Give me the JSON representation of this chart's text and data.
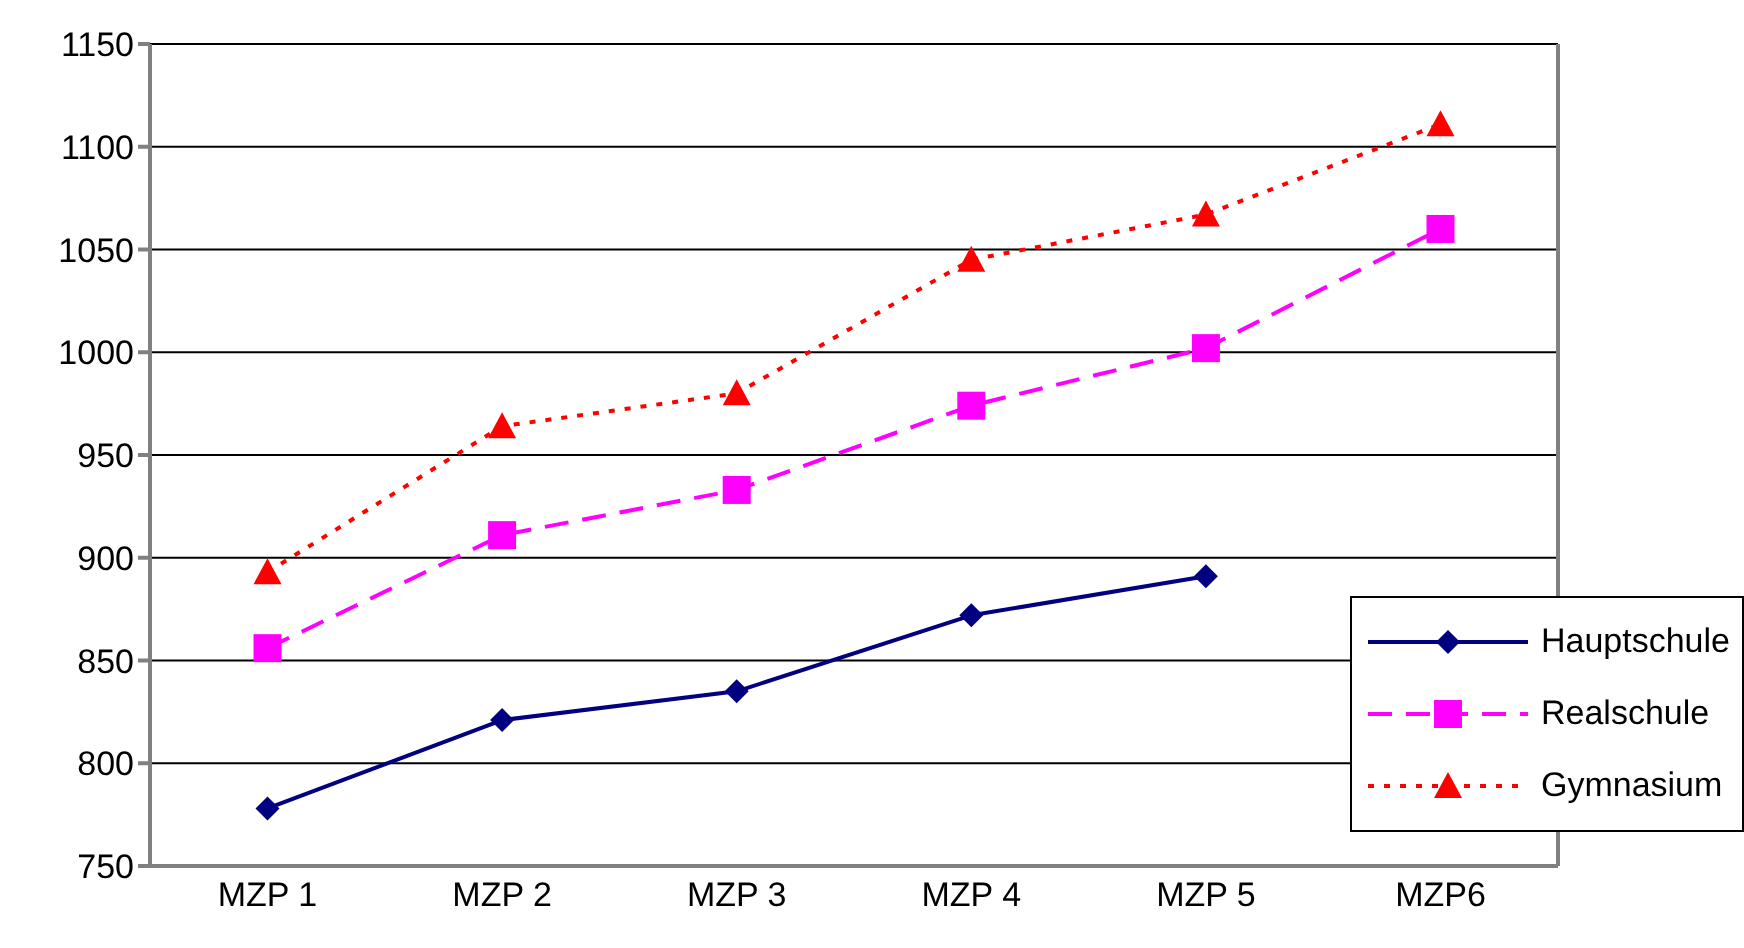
{
  "chart_data": {
    "type": "line",
    "categories": [
      "MZP 1",
      "MZP 2",
      "MZP 3",
      "MZP 4",
      "MZP 5",
      "MZP6"
    ],
    "series": [
      {
        "name": "Hauptschule",
        "color": "#000080",
        "marker": "diamond",
        "line_style": "solid",
        "values": [
          778,
          821,
          835,
          872,
          891,
          null
        ]
      },
      {
        "name": "Realschule",
        "color": "#ff00ff",
        "marker": "square",
        "line_style": "dashed",
        "values": [
          856,
          911,
          933,
          974,
          1002,
          1060
        ]
      },
      {
        "name": "Gymnasium",
        "color": "#ff0000",
        "marker": "triangle",
        "line_style": "dotted",
        "values": [
          893,
          964,
          980,
          1045,
          1067,
          1111
        ]
      }
    ],
    "ylim": [
      750,
      1150
    ],
    "yticks": [
      750,
      800,
      850,
      900,
      950,
      1000,
      1050,
      1100,
      1150
    ],
    "grid": "y",
    "legend": "bottom right"
  }
}
